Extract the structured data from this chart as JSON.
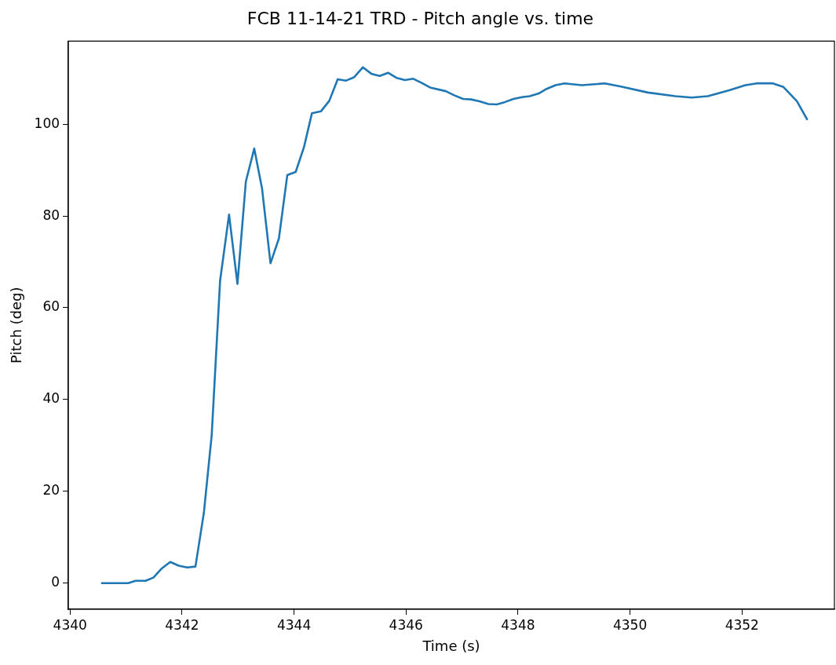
{
  "chart_data": {
    "type": "line",
    "title": "FCB 11-14-21 TRD - Pitch angle vs. time",
    "xlabel": "Time (s)",
    "ylabel": "Pitch (deg)",
    "x": [
      4340.57,
      4341.04,
      4341.17,
      4341.35,
      4341.49,
      4341.63,
      4341.79,
      4341.94,
      4342.09,
      4342.24,
      4342.39,
      4342.53,
      4342.68,
      4342.84,
      4342.99,
      4343.14,
      4343.29,
      4343.43,
      4343.58,
      4343.73,
      4343.88,
      4344.03,
      4344.18,
      4344.32,
      4344.48,
      4344.63,
      4344.78,
      4344.93,
      4345.07,
      4345.23,
      4345.38,
      4345.53,
      4345.68,
      4345.83,
      4345.98,
      4346.13,
      4346.28,
      4346.43,
      4346.71,
      4346.86,
      4347.02,
      4347.16,
      4347.31,
      4347.47,
      4347.62,
      4347.76,
      4347.92,
      4348.07,
      4348.21,
      4348.37,
      4348.51,
      4348.67,
      4348.83,
      4349.14,
      4349.55,
      4349.84,
      4350.32,
      4350.81,
      4351.1,
      4351.39,
      4351.77,
      4352.06,
      4352.26,
      4352.55,
      4352.74,
      4352.98,
      4353.16
    ],
    "series": [
      {
        "color": "#1f77b4",
        "values": [
          0,
          0,
          0.5,
          0.5,
          1.2,
          3.1,
          4.6,
          3.8,
          3.4,
          3.6,
          15.3,
          32.2,
          65.9,
          80.3,
          65.2,
          87.5,
          94.7,
          85.9,
          69.7,
          75.1,
          88.9,
          89.6,
          95.1,
          102.4,
          102.8,
          105.1,
          109.8,
          109.5,
          110.2,
          112.4,
          111.0,
          110.5,
          111.2,
          110.1,
          109.6,
          109.9,
          109.0,
          108.0,
          107.2,
          106.3,
          105.5,
          105.4,
          105.0,
          104.4,
          104.3,
          104.8,
          105.5,
          105.9,
          106.1,
          106.7,
          107.7,
          108.5,
          108.9,
          108.5,
          108.9,
          108.2,
          106.9,
          106.1,
          105.8,
          106.1,
          107.4,
          108.5,
          108.9,
          108.9,
          108.1,
          105.0,
          101.1
        ]
      }
    ],
    "xlim": [
      4339.97,
      4353.65
    ],
    "ylim": [
      -5.7,
      118.1
    ],
    "xticks": [
      4340,
      4342,
      4344,
      4346,
      4348,
      4350,
      4352
    ],
    "yticks": [
      0,
      20,
      40,
      60,
      80,
      100
    ],
    "grid": false,
    "legend": false,
    "marker": "none",
    "line_style": "solid"
  }
}
